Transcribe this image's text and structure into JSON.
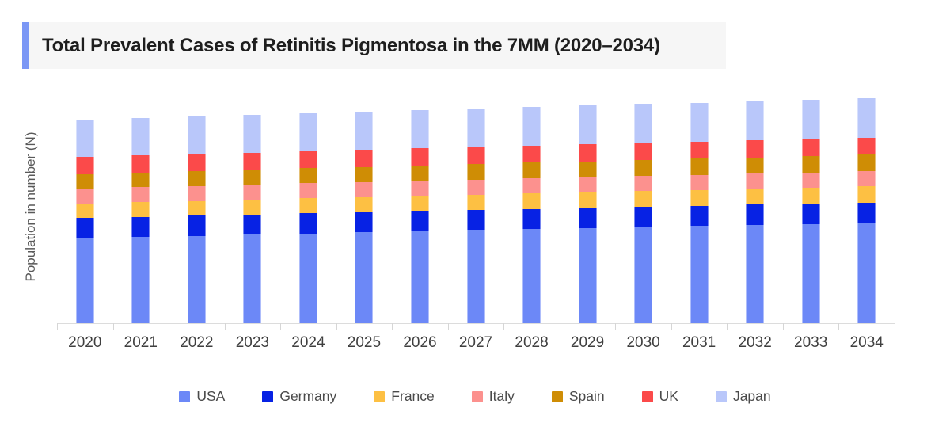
{
  "title": {
    "text": "Total Prevalent Cases of Retinitis Pigmentosa in the 7MM (2020–2034)"
  },
  "y_axis": {
    "label": "Population in number (N)"
  },
  "accent_color": "#7b97f5",
  "legend": {
    "items": [
      "USA",
      "Germany",
      "France",
      "Italy",
      "Spain",
      "UK",
      "Japan"
    ]
  },
  "chart_data": {
    "type": "bar",
    "stacked": true,
    "title": "Total Prevalent Cases of Retinitis Pigmentosa in the 7MM (2020–2034)",
    "xlabel": "",
    "ylabel": "Population in number (N)",
    "legend_position": "bottom",
    "grid": false,
    "y_axis_numeric_labels_shown": false,
    "value_scale": "relative units estimated from stacked segment heights (no numeric tick labels in source)",
    "categories": [
      "2020",
      "2021",
      "2022",
      "2023",
      "2024",
      "2025",
      "2026",
      "2027",
      "2028",
      "2029",
      "2030",
      "2031",
      "2032",
      "2033",
      "2034"
    ],
    "series": [
      {
        "name": "USA",
        "color": "#6c88f7",
        "values": [
          107.3,
          108.8,
          110.2,
          111.7,
          113.2,
          114.6,
          116.1,
          117.6,
          118.9,
          120.2,
          121.4,
          122.7,
          124.0,
          125.3,
          126.6
        ]
      },
      {
        "name": "Germany",
        "color": "#0722e4",
        "values": [
          25.6,
          25.6,
          25.6,
          25.6,
          25.6,
          25.6,
          25.6,
          25.6,
          25.6,
          25.6,
          25.6,
          25.6,
          25.6,
          25.6,
          25.6
        ]
      },
      {
        "name": "France",
        "color": "#fdc043",
        "values": [
          18.5,
          18.6,
          18.7,
          18.8,
          19.0,
          19.1,
          19.2,
          19.3,
          19.5,
          19.7,
          19.9,
          20.1,
          20.3,
          20.5,
          20.7
        ]
      },
      {
        "name": "Italy",
        "color": "#fc918e",
        "values": [
          19.0,
          19.0,
          19.0,
          19.0,
          19.0,
          19.0,
          19.0,
          19.0,
          19.0,
          19.0,
          19.0,
          19.0,
          19.0,
          19.0,
          19.0
        ]
      },
      {
        "name": "Spain",
        "color": "#cf8d05",
        "values": [
          18.0,
          18.2,
          18.4,
          18.6,
          18.8,
          19.0,
          19.2,
          19.4,
          19.6,
          19.8,
          20.0,
          20.2,
          20.3,
          20.5,
          20.7
        ]
      },
      {
        "name": "UK",
        "color": "#fb4a4a",
        "values": [
          21.7,
          21.7,
          21.7,
          21.7,
          21.7,
          21.7,
          21.7,
          21.7,
          21.7,
          21.7,
          21.7,
          21.7,
          21.7,
          21.7,
          21.7
        ]
      },
      {
        "name": "Japan",
        "color": "#b9c7fa",
        "values": [
          46.7,
          46.9,
          47.2,
          47.4,
          47.7,
          47.9,
          48.2,
          48.4,
          48.6,
          48.8,
          49.0,
          49.1,
          49.3,
          49.4,
          49.6
        ]
      }
    ]
  }
}
